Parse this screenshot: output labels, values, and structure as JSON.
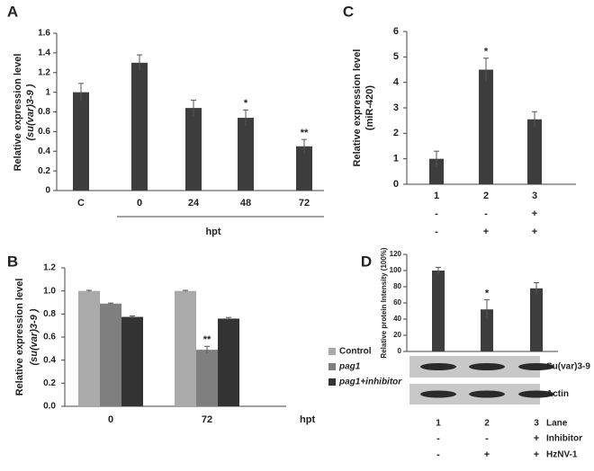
{
  "chart_data": [
    {
      "type": "bar",
      "panel": "A",
      "y_label": [
        "Relative expression level",
        "(su(var)3-9 )"
      ],
      "x_label": "hpt",
      "categories": [
        "C",
        "0",
        "24",
        "48",
        "72"
      ],
      "values": [
        1.0,
        1.3,
        0.84,
        0.74,
        0.45
      ],
      "errors": [
        0.09,
        0.08,
        0.08,
        0.08,
        0.07
      ],
      "annotations": [
        null,
        null,
        null,
        "*",
        "**"
      ],
      "color": "#3d3d3d",
      "ylim": [
        0,
        1.6
      ],
      "yticks": [
        0,
        0.2,
        0.4,
        0.6,
        0.8,
        1,
        1.2,
        1.4,
        1.6
      ]
    },
    {
      "type": "grouped-bar",
      "panel": "B",
      "y_label": [
        "Relative expression level",
        "(su(var)3-9 )"
      ],
      "x_label": "hpt",
      "categories": [
        "0",
        "72"
      ],
      "series": [
        {
          "name": "Control",
          "color": "#aaaaaa",
          "values": [
            1.0,
            1.0
          ],
          "errors": [
            0.005,
            0.005
          ],
          "annotations": [
            null,
            null
          ]
        },
        {
          "name": "pag1",
          "color": "#7f7f7f",
          "values": [
            0.89,
            0.49
          ],
          "errors": [
            0.005,
            0.03
          ],
          "annotations": [
            null,
            "**"
          ]
        },
        {
          "name": "pag1+inhibitor",
          "color": "#333333",
          "values": [
            0.775,
            0.76
          ],
          "errors": [
            0.008,
            0.01
          ],
          "annotations": [
            null,
            null
          ]
        }
      ],
      "ylim": [
        0,
        1.2
      ],
      "yticks": [
        {
          "value": 0,
          "label": "0.0"
        },
        0.2,
        0.4,
        0.6,
        0.8,
        {
          "value": 1,
          "label": "1.0"
        },
        1.2
      ],
      "legend": "right"
    },
    {
      "type": "bar",
      "panel": "C",
      "y_label": [
        "Relative expression level",
        "(miR-420)"
      ],
      "categories": [
        "1",
        "2",
        "3"
      ],
      "values": [
        1.0,
        4.5,
        2.55
      ],
      "errors": [
        0.3,
        0.45,
        0.3
      ],
      "annotations": [
        null,
        "*",
        null
      ],
      "color": "#3d3d3d",
      "rows": [
        {
          "values": [
            "-",
            "-",
            "+"
          ]
        },
        {
          "values": [
            "-",
            "+",
            "+"
          ]
        }
      ],
      "ylim": [
        0,
        6
      ],
      "yticks": [
        0,
        1,
        2,
        3,
        4,
        5,
        6
      ]
    },
    {
      "type": "bar",
      "panel": "D",
      "y_label": [
        "Relative protein Intensity (100%)"
      ],
      "x_label": "Lane",
      "categories": [
        "1",
        "2",
        "3"
      ],
      "values": [
        100,
        52,
        78
      ],
      "errors": [
        4,
        12,
        7
      ],
      "annotations": [
        null,
        "*",
        null
      ],
      "color": "#3d3d3d",
      "blot_labels": [
        "Su(var)3-9",
        "Actin"
      ],
      "rows": [
        {
          "name": "Inhibitor",
          "values": [
            "-",
            "-",
            "+"
          ]
        },
        {
          "name": "HzNV-1",
          "values": [
            "-",
            "+",
            "+"
          ]
        }
      ],
      "ylim": [
        0,
        120
      ],
      "yticks": [
        0,
        20,
        40,
        60,
        80,
        100,
        120
      ]
    }
  ]
}
